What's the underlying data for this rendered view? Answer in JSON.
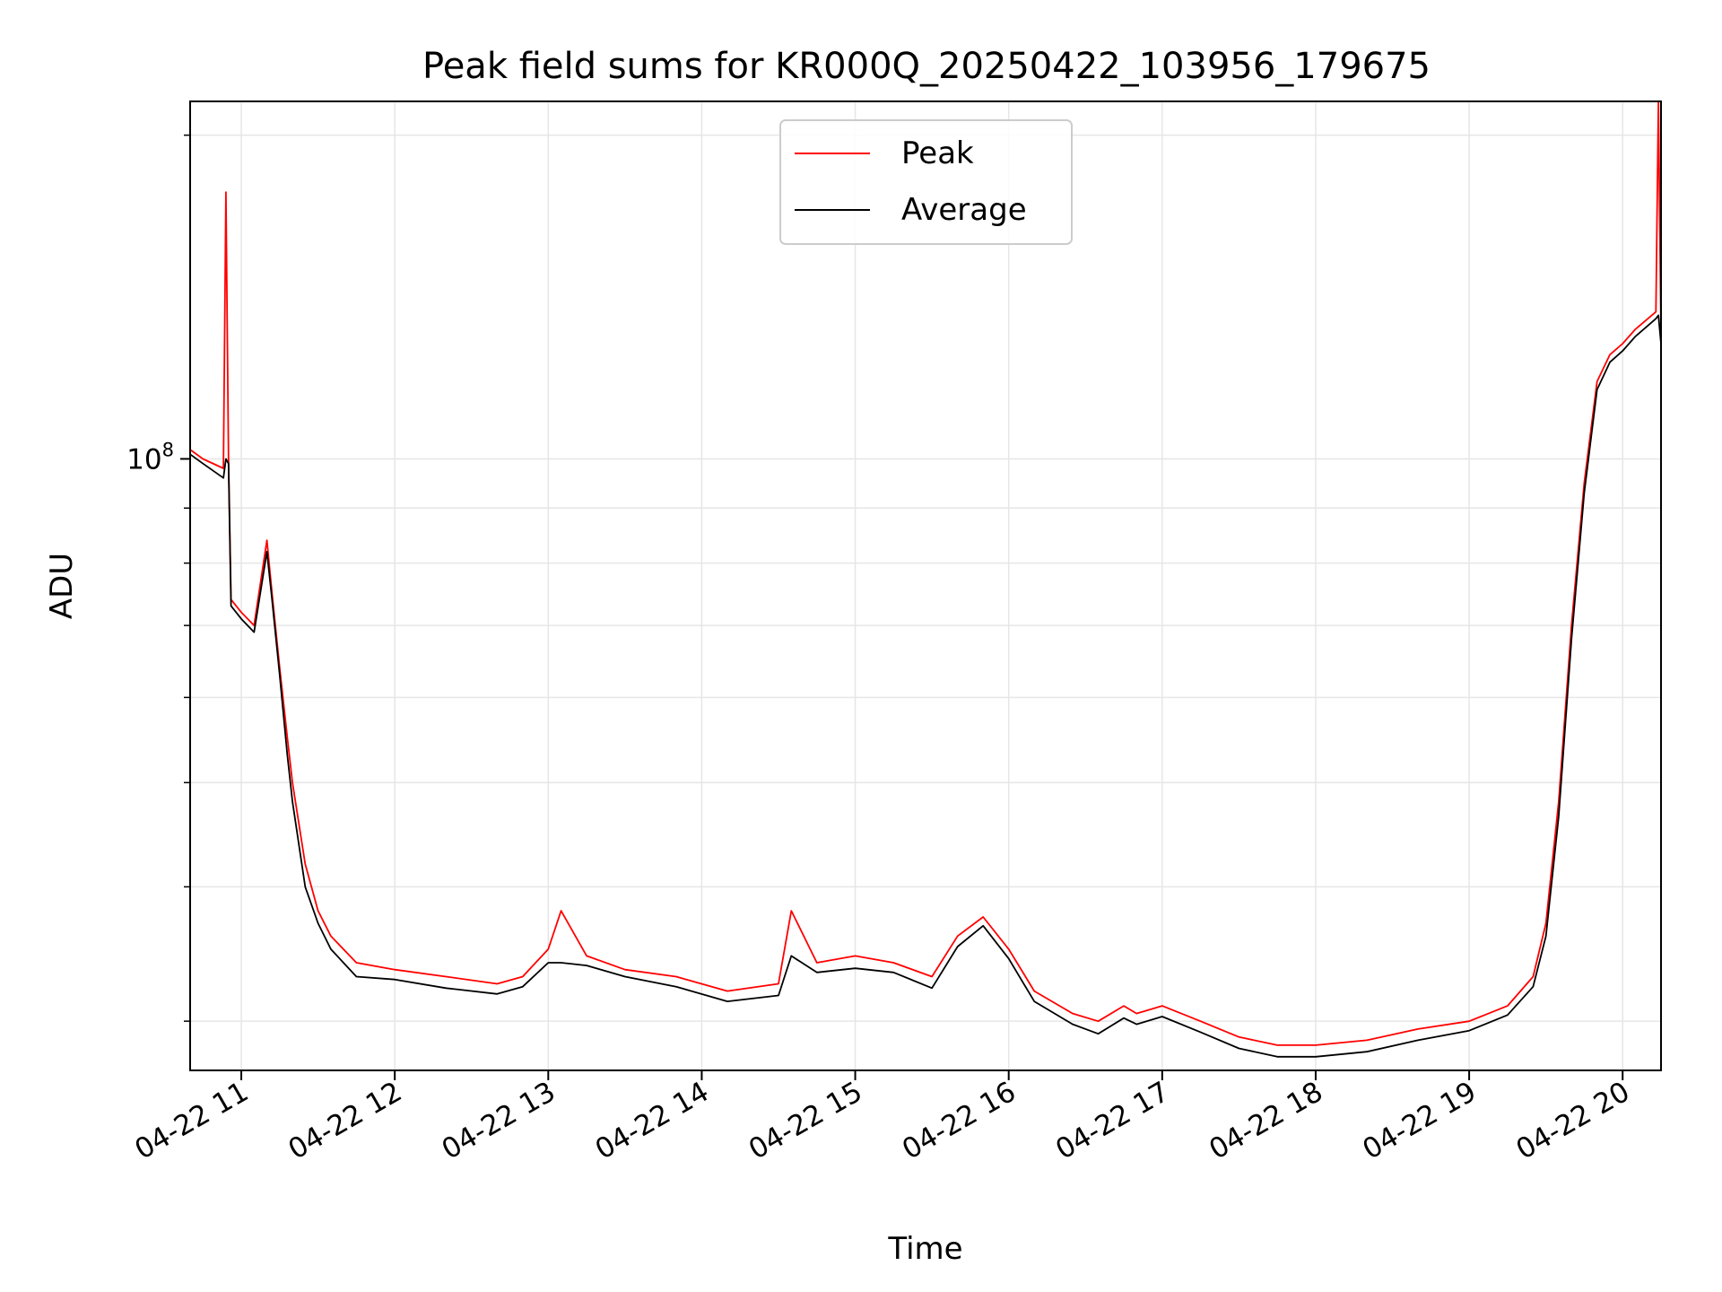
{
  "chart_data": {
    "type": "line",
    "title": "Peak field sums for KR000Q_20250422_103956_179675",
    "xlabel": "Time",
    "ylabel": "ADU",
    "x_ticks": [
      "04-22 11",
      "04-22 12",
      "04-22 13",
      "04-22 14",
      "04-22 15",
      "04-22 16",
      "04-22 17",
      "04-22 18",
      "04-22 19",
      "04-22 20"
    ],
    "y_tick_base": "10",
    "y_tick_exp": "8",
    "y_scale": "log",
    "xlim": [
      "04-22 10:40",
      "04-22 20:15"
    ],
    "ylim": [
      27000000,
      215000000
    ],
    "grid": true,
    "legend": {
      "placement": "upper-center"
    },
    "colors": {
      "peak": "#ff0000",
      "average": "#000000",
      "grid": "#e6e6e6"
    },
    "series": [
      {
        "name": "Peak",
        "x": [
          "10:40",
          "10:45",
          "10:53",
          "10:54",
          "10:55",
          "10:56",
          "11:00",
          "11:05",
          "11:10",
          "11:12",
          "11:15",
          "11:18",
          "11:20",
          "11:25",
          "11:30",
          "11:35",
          "11:45",
          "12:00",
          "12:20",
          "12:40",
          "12:50",
          "13:00",
          "13:05",
          "13:15",
          "13:30",
          "13:50",
          "14:10",
          "14:30",
          "14:35",
          "14:45",
          "15:00",
          "15:15",
          "15:30",
          "15:40",
          "15:50",
          "16:00",
          "16:10",
          "16:25",
          "16:35",
          "16:45",
          "16:50",
          "17:00",
          "17:15",
          "17:30",
          "17:45",
          "18:00",
          "18:20",
          "18:40",
          "19:00",
          "19:15",
          "19:25",
          "19:30",
          "19:35",
          "19:40",
          "19:45",
          "19:50",
          "19:55",
          "20:00",
          "20:05",
          "20:13",
          "20:14",
          "20:15"
        ],
        "values": [
          102000000,
          100000000,
          98000000,
          177000000,
          100000000,
          74000000,
          72000000,
          70000000,
          84000000,
          75000000,
          64000000,
          55000000,
          50000000,
          42000000,
          38000000,
          36000000,
          34000000,
          33500000,
          33000000,
          32500000,
          33000000,
          35000000,
          38000000,
          34500000,
          33500000,
          33000000,
          32000000,
          32500000,
          38000000,
          34000000,
          34500000,
          34000000,
          33000000,
          36000000,
          37500000,
          35000000,
          32000000,
          30500000,
          30000000,
          31000000,
          30500000,
          31000000,
          30000000,
          29000000,
          28500000,
          28500000,
          28800000,
          29500000,
          30000000,
          31000000,
          33000000,
          37000000,
          48000000,
          70000000,
          95000000,
          118000000,
          125000000,
          128000000,
          132000000,
          137000000,
          215000000,
          130000000
        ]
      },
      {
        "name": "Average",
        "x": [
          "10:40",
          "10:45",
          "10:53",
          "10:54",
          "10:55",
          "10:56",
          "11:00",
          "11:05",
          "11:10",
          "11:12",
          "11:15",
          "11:18",
          "11:20",
          "11:25",
          "11:30",
          "11:35",
          "11:45",
          "12:00",
          "12:20",
          "12:40",
          "12:50",
          "13:00",
          "13:05",
          "13:15",
          "13:30",
          "13:50",
          "14:10",
          "14:30",
          "14:35",
          "14:45",
          "15:00",
          "15:15",
          "15:30",
          "15:40",
          "15:50",
          "16:00",
          "16:10",
          "16:25",
          "16:35",
          "16:45",
          "16:50",
          "17:00",
          "17:15",
          "17:30",
          "17:45",
          "18:00",
          "18:20",
          "18:40",
          "19:00",
          "19:15",
          "19:25",
          "19:30",
          "19:35",
          "19:40",
          "19:45",
          "19:50",
          "19:55",
          "20:00",
          "20:05",
          "20:13",
          "20:14",
          "20:15"
        ],
        "values": [
          101000000,
          99000000,
          96000000,
          100000000,
          99000000,
          73000000,
          71000000,
          69000000,
          82000000,
          74000000,
          63000000,
          53000000,
          48000000,
          40000000,
          37000000,
          35000000,
          33000000,
          32800000,
          32200000,
          31800000,
          32300000,
          34000000,
          34000000,
          33800000,
          33000000,
          32300000,
          31300000,
          31700000,
          34500000,
          33300000,
          33600000,
          33300000,
          32200000,
          35200000,
          36800000,
          34300000,
          31300000,
          29800000,
          29200000,
          30200000,
          29800000,
          30300000,
          29300000,
          28300000,
          27800000,
          27800000,
          28100000,
          28800000,
          29400000,
          30400000,
          32300000,
          36000000,
          46500000,
          68000000,
          93000000,
          116000000,
          123000000,
          126000000,
          130000000,
          135000000,
          136000000,
          128000000
        ]
      }
    ]
  }
}
